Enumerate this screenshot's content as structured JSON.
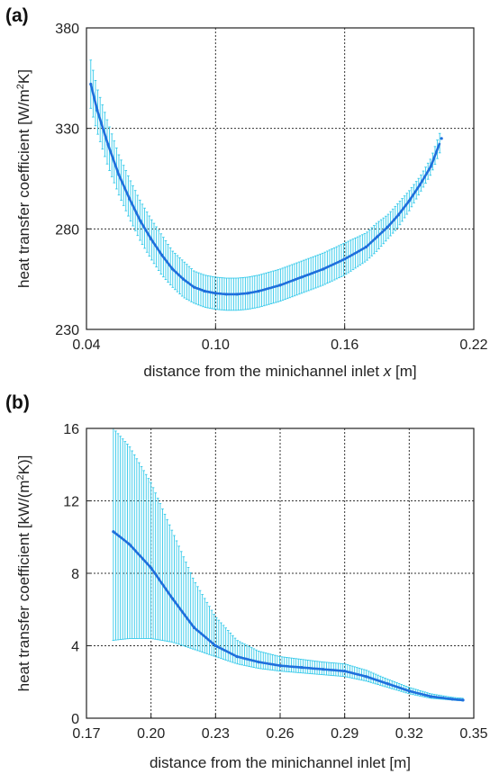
{
  "chart_data": [
    {
      "panel_label": "(a)",
      "type": "line",
      "error_bars": true,
      "xlabel": "distance from the minichannel inlet",
      "xlabel_var": "x",
      "xlabel_unit": "[m]",
      "ylabel_main": "heat transfer coefficient [W/m",
      "ylabel_sup": "2",
      "ylabel_end": "K]",
      "xlim": [
        0.04,
        0.22
      ],
      "ylim": [
        230,
        380
      ],
      "xticks": [
        "0.04",
        "0.10",
        "0.16",
        "0.22"
      ],
      "yticks": [
        "230",
        "280",
        "330",
        "380"
      ],
      "grid": true,
      "line_color": "#1f6fdc",
      "errorbar_color": "#33c9ea",
      "x": [
        0.042,
        0.045,
        0.05,
        0.055,
        0.06,
        0.065,
        0.07,
        0.075,
        0.08,
        0.085,
        0.09,
        0.095,
        0.1,
        0.105,
        0.11,
        0.115,
        0.12,
        0.13,
        0.14,
        0.15,
        0.16,
        0.17,
        0.175,
        0.18,
        0.185,
        0.19,
        0.195,
        0.2,
        0.205
      ],
      "y": [
        352,
        339,
        322,
        307,
        295,
        284,
        275,
        267,
        260,
        255,
        251,
        249,
        248,
        247.5,
        247.5,
        248,
        249,
        252,
        256,
        260,
        265,
        271,
        276,
        281,
        287,
        294,
        302,
        311,
        325
      ],
      "err": [
        12,
        11,
        11,
        10,
        10,
        10,
        10,
        10,
        9,
        9,
        8,
        8,
        8,
        8,
        8,
        8,
        8,
        8,
        8,
        8,
        8,
        7,
        7,
        6,
        6,
        5,
        4,
        4,
        5
      ]
    },
    {
      "panel_label": "(b)",
      "type": "line",
      "error_bars": true,
      "xlabel": "distance from the minichannel inlet [m]",
      "ylabel_main": "heat transfer coefficient [kW/(m",
      "ylabel_sup": "2",
      "ylabel_end": "K)]",
      "xlim": [
        0.17,
        0.35
      ],
      "ylim": [
        0,
        16
      ],
      "xticks": [
        "0.17",
        "0.20",
        "0.23",
        "0.26",
        "0.29",
        "0.32",
        "0.35"
      ],
      "yticks": [
        "0",
        "4",
        "8",
        "12",
        "16"
      ],
      "grid": true,
      "line_color": "#1f6fdc",
      "errorbar_color": "#33c9ea",
      "x": [
        0.1825,
        0.19,
        0.2,
        0.21,
        0.22,
        0.23,
        0.24,
        0.25,
        0.26,
        0.27,
        0.28,
        0.29,
        0.3,
        0.31,
        0.32,
        0.33,
        0.34,
        0.345
      ],
      "y": [
        10.3,
        9.6,
        8.3,
        6.6,
        5.0,
        4.0,
        3.4,
        3.1,
        2.9,
        2.8,
        2.7,
        2.6,
        2.3,
        1.9,
        1.5,
        1.2,
        1.05,
        1.0
      ],
      "err_low": [
        6.0,
        5.2,
        3.9,
        2.4,
        1.2,
        0.6,
        0.4,
        0.35,
        0.3,
        0.3,
        0.3,
        0.3,
        0.25,
        0.2,
        0.15,
        0.1,
        0.05,
        0.05
      ],
      "err_high": [
        5.7,
        5.4,
        4.7,
        3.7,
        2.6,
        1.6,
        0.9,
        0.6,
        0.5,
        0.45,
        0.4,
        0.4,
        0.35,
        0.25,
        0.2,
        0.15,
        0.1,
        0.1
      ]
    }
  ]
}
